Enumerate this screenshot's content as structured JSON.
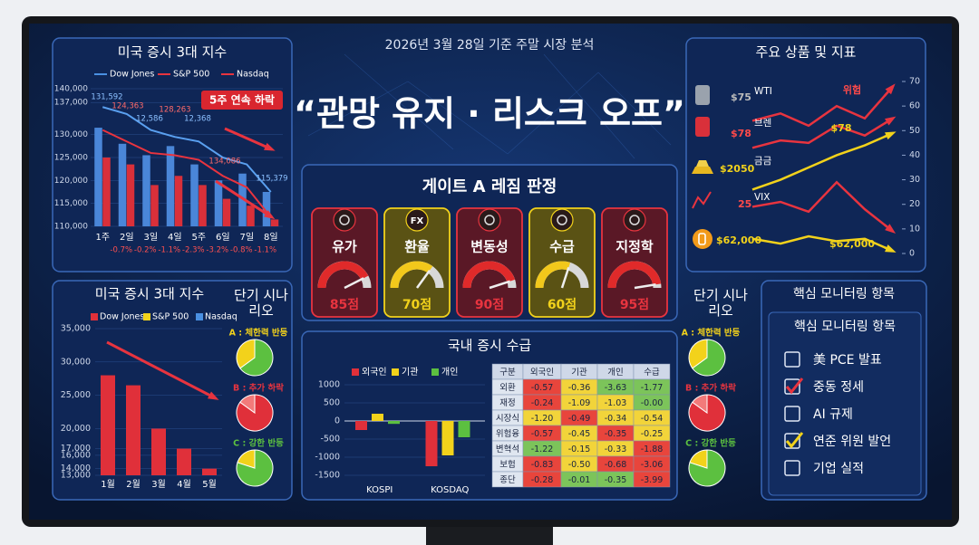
{
  "header": {
    "subtitle": "2026년 3월 28일 기준 주말 시장 분석",
    "headline": "“관망 유지 · 리스크 오프”"
  },
  "chart_data": [
    {
      "type": "bar",
      "title": "미국 증시 3대 지수",
      "legend": [
        {
          "name": "Dow Jones",
          "color": "#4a90e2"
        },
        {
          "name": "S&P 500",
          "color": "#e8343f"
        },
        {
          "name": "Nasdaq",
          "color": "#e8343f"
        }
      ],
      "categories": [
        "1주",
        "2일",
        "3일",
        "4일",
        "5주",
        "6일",
        "7일",
        "8일"
      ],
      "series": [
        {
          "kind": "bar",
          "color": "#4a86d8",
          "values": [
            131500,
            128000,
            125500,
            127500,
            123500,
            120000,
            121500,
            117500
          ]
        },
        {
          "kind": "bar",
          "color": "#d9303a",
          "values": [
            125000,
            123500,
            119000,
            121000,
            119000,
            116000,
            114500,
            111500
          ]
        },
        {
          "kind": "line",
          "color": "#5aa0f0",
          "values": [
            136000,
            134500,
            131000,
            129500,
            128500,
            125000,
            123500,
            117500
          ]
        },
        {
          "kind": "line",
          "color": "#e8343f",
          "values": [
            131000,
            128500,
            126000,
            125500,
            124500,
            121000,
            118500,
            112000
          ]
        }
      ],
      "point_labels": [
        "131,592",
        "124,363",
        "12,586",
        "128,263",
        "12,368",
        "134,086",
        "115,379"
      ],
      "changes": [
        "-0.7%",
        "-0.2%",
        "-1.1%",
        "-2.3%",
        "-3.2%",
        "-0.8%",
        "-1.1%"
      ],
      "badge": "5주 연속 하락",
      "ylim": [
        110000,
        140000
      ],
      "yticks": [
        {
          "value": 110000,
          "label": "110,000"
        },
        {
          "value": 115000,
          "label": "115,000"
        },
        {
          "value": 120000,
          "label": "120,000"
        },
        {
          "value": 125000,
          "label": "125,000"
        },
        {
          "value": 130000,
          "label": "130,000"
        },
        {
          "value": 137000,
          "label": "137,000"
        },
        {
          "value": 140000,
          "label": "140,000"
        }
      ]
    },
    {
      "type": "bar",
      "title": "미국 증시 3대 지수",
      "legend": [
        {
          "name": "Dow Jones",
          "color": "#e0303a"
        },
        {
          "name": "S&P 500",
          "color": "#f2d21b"
        },
        {
          "name": "Nasdaq",
          "color": "#4a90e2"
        }
      ],
      "categories": [
        "1월",
        "2월",
        "3월",
        "4월",
        "5월"
      ],
      "values": [
        28000,
        26500,
        20000,
        17000,
        14000
      ],
      "color": "#e0303a",
      "ylim": [
        13000,
        35000
      ],
      "yticks": [
        {
          "value": 35000,
          "label": "35,000"
        },
        {
          "value": 30000,
          "label": "30,000"
        },
        {
          "value": 25000,
          "label": "25,000"
        },
        {
          "value": 20000,
          "label": "20,000"
        },
        {
          "value": 17000,
          "label": "17,000"
        },
        {
          "value": 16000,
          "label": "16,000"
        },
        {
          "value": 14000,
          "label": "14,000"
        },
        {
          "value": 13000,
          "label": "13,000"
        }
      ]
    },
    {
      "type": "line",
      "title": "주요 상품 및 지표",
      "series": [
        {
          "name": "WTI",
          "label": "$75",
          "color": "#e8343f",
          "axis": "y2",
          "values": [
            54,
            57,
            52,
            60,
            55,
            68
          ]
        },
        {
          "name": "브렌",
          "label": "$78",
          "color": "#e8343f",
          "axis": "y2",
          "values": [
            43,
            46,
            45,
            52,
            48,
            55
          ]
        },
        {
          "name": "금금",
          "label": "$2050",
          "color": "#f2d21b",
          "axis": "y2",
          "values": [
            26,
            30,
            35,
            40,
            44,
            49
          ]
        },
        {
          "name": "VIX",
          "label": "25",
          "color": "#e8343f",
          "axis": "y2",
          "values": [
            19,
            21,
            17,
            29,
            18,
            9
          ]
        },
        {
          "label": "$62,000",
          "color": "#f2d21b",
          "axis": "y2",
          "values": [
            6,
            4,
            7,
            5,
            6,
            1
          ]
        }
      ],
      "annotations": [
        "위험",
        "$78",
        "$62,000"
      ],
      "y2lim": [
        0,
        70
      ],
      "y2ticks": [
        0,
        10,
        20,
        30,
        40,
        50,
        60,
        70
      ]
    },
    {
      "type": "bar",
      "title": "국내 증시 수급",
      "categories": [
        "KOSPI",
        "KOSDAQ"
      ],
      "series": [
        {
          "name": "외국인",
          "color": "#e0303a",
          "values": [
            -250,
            -1250
          ]
        },
        {
          "name": "기관",
          "color": "#f2d21b",
          "values": [
            200,
            -950
          ]
        },
        {
          "name": "개인",
          "color": "#5cc040",
          "values": [
            -80,
            -450
          ]
        }
      ],
      "ylim": [
        -1500,
        1000
      ],
      "yticks": [
        1000,
        500,
        0,
        -500,
        -1000,
        -1500
      ]
    }
  ],
  "gate": {
    "title": "게이트 A 레짐 판정",
    "items": [
      {
        "label": "유가",
        "value": 85,
        "value_label": "85점",
        "color": "#e8343f"
      },
      {
        "label": "환율",
        "icon": "FX",
        "value": 70,
        "value_label": "70점",
        "color": "#f2d21b"
      },
      {
        "label": "변동성",
        "value": 90,
        "value_label": "90점",
        "color": "#e8343f"
      },
      {
        "label": "수급",
        "value": 60,
        "value_label": "60점",
        "color": "#f2d21b"
      },
      {
        "label": "지정학",
        "value": 95,
        "value_label": "95점",
        "color": "#e8343f"
      }
    ]
  },
  "table": {
    "header": [
      "구분",
      "외국인",
      "기관",
      "개인",
      "수급"
    ],
    "rows": [
      [
        "외환",
        "-0.57",
        "-0.36",
        "-3.63",
        "-1.77"
      ],
      [
        "재정",
        "-0.24",
        "-1.09",
        "-1.03",
        "-0.00"
      ],
      [
        "시장식",
        "-1.20",
        "-0.49",
        "-0.34",
        "-0.54"
      ],
      [
        "위험융",
        "-0.57",
        "-0.45",
        "-0.35",
        "-0.25"
      ],
      [
        "변혁석",
        "-1.22",
        "-0.15",
        "-0.33",
        "-1.88"
      ],
      [
        "보험",
        "-0.83",
        "-0.50",
        "-0.68",
        "-3.06"
      ],
      [
        "종단",
        "-0.28",
        "-0.01",
        "-0.35",
        "-3.99"
      ]
    ],
    "colors": [
      [
        "#e8453c",
        "#f2d43a",
        "#7cc45a",
        "#7cc45a"
      ],
      [
        "#e8453c",
        "#f2d43a",
        "#f2d43a",
        "#7cc45a"
      ],
      [
        "#f2d43a",
        "#e8453c",
        "#f2d43a",
        "#f2d43a"
      ],
      [
        "#e8453c",
        "#f2d43a",
        "#e8453c",
        "#f2d43a"
      ],
      [
        "#7cc45a",
        "#f2d43a",
        "#f2d43a",
        "#e8453c"
      ],
      [
        "#e8453c",
        "#f2d43a",
        "#e8453c",
        "#e8453c"
      ],
      [
        "#e8453c",
        "#7cc45a",
        "#7cc45a",
        "#e8453c"
      ]
    ]
  },
  "scenarios": [
    {
      "title": "단기 시나리오",
      "items": [
        {
          "label": "A : 체한력 반등",
          "color": "#f2d21b",
          "values": [
            65,
            35
          ],
          "colors": [
            "#5cc040",
            "#f2d21b"
          ]
        },
        {
          "label": "B : 추가 하락",
          "color": "#e8343f",
          "values": [
            85,
            15
          ],
          "colors": [
            "#e0303a",
            "#f27a7a"
          ]
        },
        {
          "label": "C : 강한 반등",
          "color": "#5cc040",
          "values": [
            80,
            20
          ],
          "colors": [
            "#5cc040",
            "#f2d21b"
          ]
        }
      ]
    },
    {
      "title": "단기 시나리오",
      "items": [
        {
          "label": "A : 체한력 반등",
          "color": "#f2d21b",
          "values": [
            65,
            35
          ],
          "colors": [
            "#5cc040",
            "#f2d21b"
          ]
        },
        {
          "label": "B : 추가 하락",
          "color": "#e8343f",
          "values": [
            85,
            15
          ],
          "colors": [
            "#e0303a",
            "#f27a7a"
          ]
        },
        {
          "label": "C : 강한 반등",
          "color": "#5cc040",
          "values": [
            80,
            20
          ],
          "colors": [
            "#5cc040",
            "#f2d21b"
          ]
        }
      ]
    }
  ],
  "monitoring": {
    "title": "핵심 모니터링 항목",
    "box_title": "핵심 모니터링 항목",
    "items": [
      {
        "label": "美 PCE 발표",
        "checked": false
      },
      {
        "label": "중동 정세",
        "checked": true,
        "color": "#e8343f"
      },
      {
        "label": "AI 규제",
        "checked": false
      },
      {
        "label": "연준 위원 발언",
        "checked": true,
        "color": "#f2d21b"
      },
      {
        "label": "기업 실적",
        "checked": false
      }
    ]
  }
}
